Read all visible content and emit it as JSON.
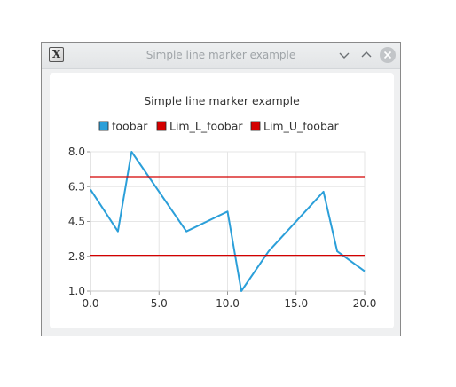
{
  "window": {
    "title": "Simple line marker example",
    "app_icon_glyph": "X",
    "buttons": [
      "minimize",
      "maximize",
      "close"
    ]
  },
  "colors": {
    "series_foobar": "#2b9fd9",
    "series_lim_l": "#d40000",
    "series_lim_u": "#d40000",
    "grid": "#e6e6e6"
  },
  "chart_data": {
    "type": "line",
    "title": "Simple line marker example",
    "xlabel": "",
    "ylabel": "",
    "xlim": [
      0.0,
      20.0
    ],
    "ylim": [
      1.0,
      8.0
    ],
    "x_ticks": [
      "0.0",
      "5.0",
      "10.0",
      "15.0",
      "20.0"
    ],
    "y_ticks": [
      "1.0",
      "2.8",
      "4.5",
      "6.3",
      "8.0"
    ],
    "grid": true,
    "legend_position": "top",
    "series": [
      {
        "name": "foobar",
        "x": [
          0,
          2,
          3,
          7,
          10,
          11,
          13,
          17,
          18,
          20
        ],
        "values": [
          6.1,
          4.0,
          8.0,
          4.0,
          5.0,
          1.0,
          3.0,
          6.0,
          3.0,
          2.0
        ]
      },
      {
        "name": "Lim_L_foobar",
        "x": [
          0,
          20
        ],
        "values": [
          2.8,
          2.8
        ]
      },
      {
        "name": "Lim_U_foobar",
        "x": [
          0,
          20
        ],
        "values": [
          6.75,
          6.75
        ]
      }
    ]
  }
}
